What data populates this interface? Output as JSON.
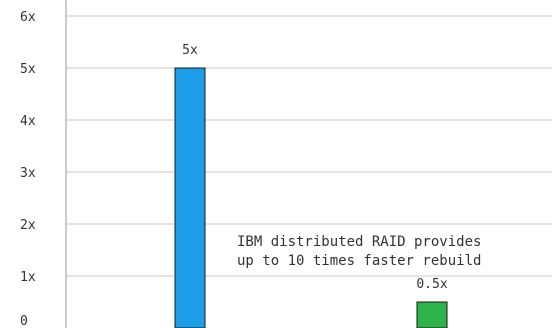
{
  "chart_data": {
    "type": "bar",
    "categories": [
      "",
      ""
    ],
    "series": [
      {
        "values": [
          5,
          0.5
        ]
      }
    ],
    "bar_colors": [
      "#1f9ee8",
      "#2fb34a"
    ],
    "data_labels": [
      "5x",
      "0.5x"
    ],
    "y_tick_labels": [
      "0",
      "1x",
      "2x",
      "3x",
      "4x",
      "5x",
      "6x"
    ],
    "ylim": [
      0,
      6
    ],
    "grid": "horizontal",
    "annotation": [
      "IBM distributed RAID provides",
      "up to 10 times faster rebuild"
    ],
    "title": "",
    "xlabel": "",
    "ylabel": ""
  },
  "colors": {
    "grid": "#c8c8c8",
    "axis": "#999999"
  }
}
